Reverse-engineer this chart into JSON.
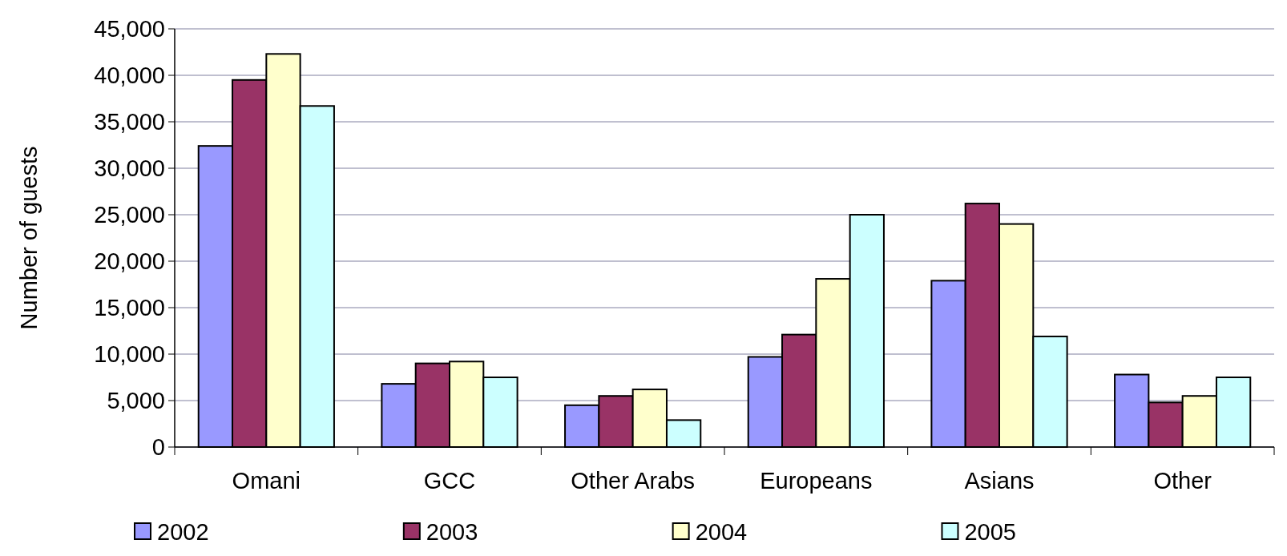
{
  "chart_data": {
    "type": "bar",
    "ylabel": "Number of guests",
    "categories": [
      "Omani",
      "GCC",
      "Other Arabs",
      "Europeans",
      "Asians",
      "Other"
    ],
    "series": [
      {
        "name": "2002",
        "color": "#9999ff",
        "values": [
          32400,
          6800,
          4500,
          9700,
          17900,
          7800
        ]
      },
      {
        "name": "2003",
        "color": "#993366",
        "values": [
          39500,
          9000,
          5500,
          12100,
          26200,
          4800
        ]
      },
      {
        "name": "2004",
        "color": "#ffffcc",
        "values": [
          42300,
          9200,
          6200,
          18100,
          24000,
          5500
        ]
      },
      {
        "name": "2005",
        "color": "#ccffff",
        "values": [
          36700,
          7500,
          2900,
          25000,
          11900,
          7500
        ]
      }
    ],
    "ylim": [
      0,
      45000
    ],
    "yticks": [
      {
        "value": 0,
        "label": "0"
      },
      {
        "value": 5000,
        "label": "5,000"
      },
      {
        "value": 10000,
        "label": "10,000"
      },
      {
        "value": 15000,
        "label": "15,000"
      },
      {
        "value": 20000,
        "label": "20,000"
      },
      {
        "value": 25000,
        "label": "25,000"
      },
      {
        "value": 30000,
        "label": "30,000"
      },
      {
        "value": 35000,
        "label": "35,000"
      },
      {
        "value": 40000,
        "label": "40,000"
      },
      {
        "value": 45000,
        "label": "45,000"
      }
    ],
    "grid": "y",
    "legend": "bottom"
  }
}
